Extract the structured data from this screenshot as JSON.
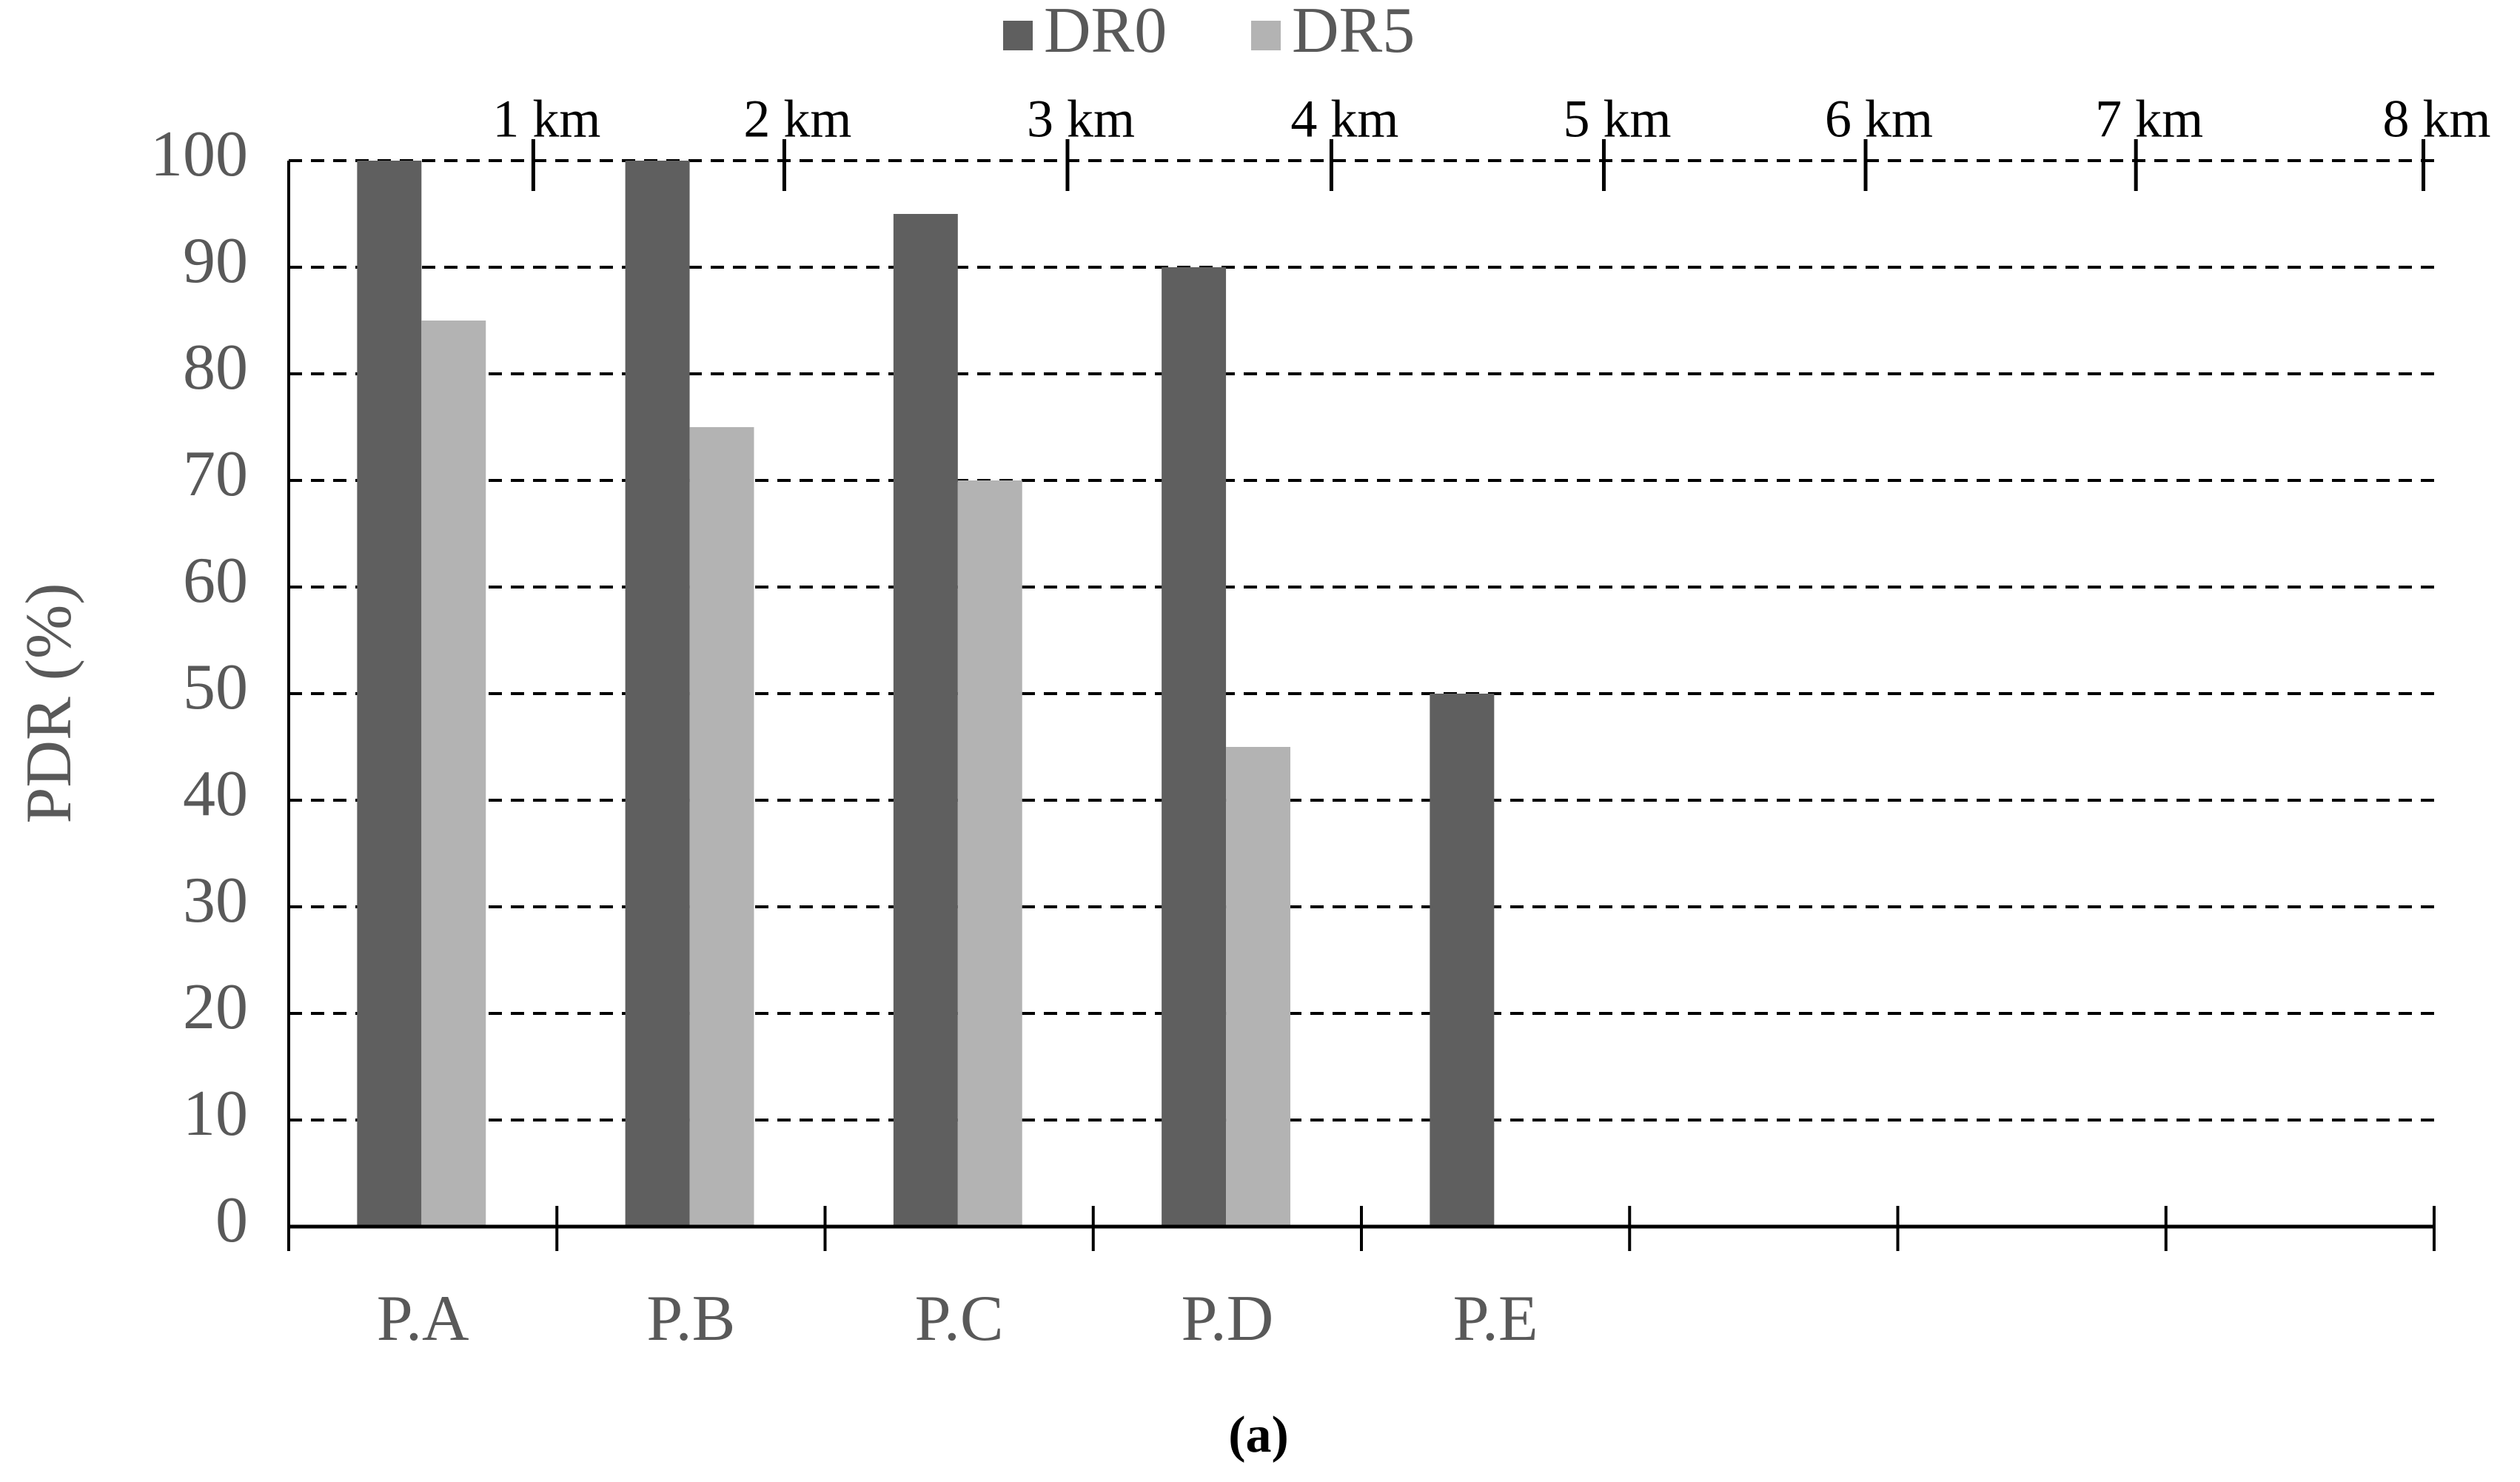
{
  "chart_data": {
    "type": "bar",
    "ylabel": "PDR (%)",
    "caption": "(a)",
    "categories": [
      "P.A",
      "P.B",
      "P.C",
      "P.D",
      "P.E",
      null,
      null,
      null
    ],
    "series": [
      {
        "name": "DR0",
        "color": "#5f5f5f",
        "values": [
          100,
          100,
          95,
          90,
          50,
          null,
          null,
          null
        ]
      },
      {
        "name": "DR5",
        "color": "#b3b3b3",
        "values": [
          85,
          75,
          70,
          45,
          null,
          null,
          null,
          null
        ]
      }
    ],
    "ylim": [
      0,
      100
    ],
    "yticks": [
      0,
      10,
      20,
      30,
      40,
      50,
      60,
      70,
      80,
      90,
      100
    ],
    "grid": true,
    "top_annotations": [
      "1 km",
      "2 km",
      "3 km",
      "4 km",
      "5 km",
      "6 km",
      "7 km",
      "8 km"
    ]
  }
}
